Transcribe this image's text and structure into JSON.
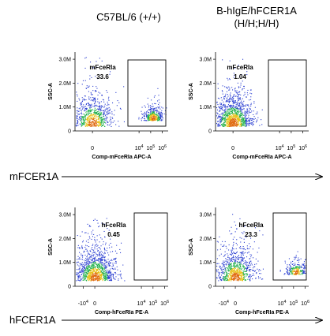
{
  "headers": {
    "left": "C57BL/6 (+/+)",
    "right_line1": "B-hIgE/hFCER1A",
    "right_line2": "(H/H;H/H)"
  },
  "arrows": {
    "top": "mFCER1A",
    "bottom": "hFCER1A"
  },
  "colors": {
    "density_low": "#2b3fd1",
    "density_mid": "#22b14c",
    "density_high": "#e8c21a",
    "density_peak": "#e06a10"
  },
  "chart_data": [
    {
      "type": "scatter",
      "subtype": "flow-cytometry-density",
      "ylabel": "SSC-A",
      "xlabel": "Comp-mFceRIa APC-A",
      "yticks": [
        "0",
        "1.0M",
        "2.0M",
        "3.0M"
      ],
      "xticks": [
        "0",
        "10^4",
        "10^5",
        "10^6"
      ],
      "gate": {
        "name": "mFceRIa",
        "percent": "33.6"
      },
      "populations": [
        {
          "x_center": 0,
          "y_center": 0.3,
          "weight": 0.66
        },
        {
          "x_center": 5.2,
          "y_center": 0.55,
          "weight": 0.34
        }
      ]
    },
    {
      "type": "scatter",
      "subtype": "flow-cytometry-density",
      "ylabel": "SSC-A",
      "xlabel": "Comp-mFceRIa APC-A",
      "yticks": [
        "0",
        "1.0M",
        "2.0M",
        "3.0M"
      ],
      "xticks": [
        "0",
        "10^4",
        "10^5",
        "10^6"
      ],
      "gate": {
        "name": "mFceRIa",
        "percent": "1.04"
      },
      "populations": [
        {
          "x_center": 0,
          "y_center": 0.3,
          "weight": 0.99
        }
      ]
    },
    {
      "type": "scatter",
      "subtype": "flow-cytometry-density",
      "ylabel": "SSC-A",
      "xlabel": "Comp-hFceRIa PE-A",
      "yticks": [
        "0",
        "1.0M",
        "2.0M",
        "3.0M"
      ],
      "xticks": [
        "-10^4",
        "0",
        "10^4",
        "10^5",
        "10^6"
      ],
      "gate": {
        "name": "hFceRIa",
        "percent": "0.45"
      },
      "populations": [
        {
          "x_center": 0,
          "y_center": 0.35,
          "weight": 0.995
        }
      ]
    },
    {
      "type": "scatter",
      "subtype": "flow-cytometry-density",
      "ylabel": "SSC-A",
      "xlabel": "Comp-hFceRIa PE-A",
      "yticks": [
        "0",
        "1.0M",
        "2.0M",
        "3.0M"
      ],
      "xticks": [
        "-10^4",
        "0",
        "10^4",
        "10^5",
        "10^6"
      ],
      "gate": {
        "name": "hFceRIa",
        "percent": "23.3"
      },
      "populations": [
        {
          "x_center": 0,
          "y_center": 0.35,
          "weight": 0.77
        },
        {
          "x_center": 5.2,
          "y_center": 0.6,
          "weight": 0.23
        }
      ]
    }
  ]
}
